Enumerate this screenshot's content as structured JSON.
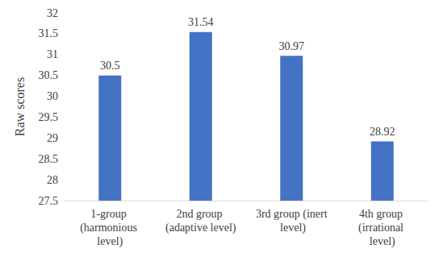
{
  "chart_data": {
    "type": "bar",
    "categories": [
      "1-group (harmonious level)",
      "2nd group (adaptive level)",
      "3rd group (inert level)",
      "4th group (irrational level)"
    ],
    "values": [
      30.5,
      31.54,
      30.97,
      28.92
    ],
    "color": "#4472c4",
    "y_label": "Raw scores",
    "ylim": [
      27.5,
      32
    ],
    "yticks": [
      27.5,
      28,
      28.5,
      29,
      29.5,
      30,
      30.5,
      31,
      31.5,
      32
    ],
    "grid": false,
    "data_labels": true
  }
}
